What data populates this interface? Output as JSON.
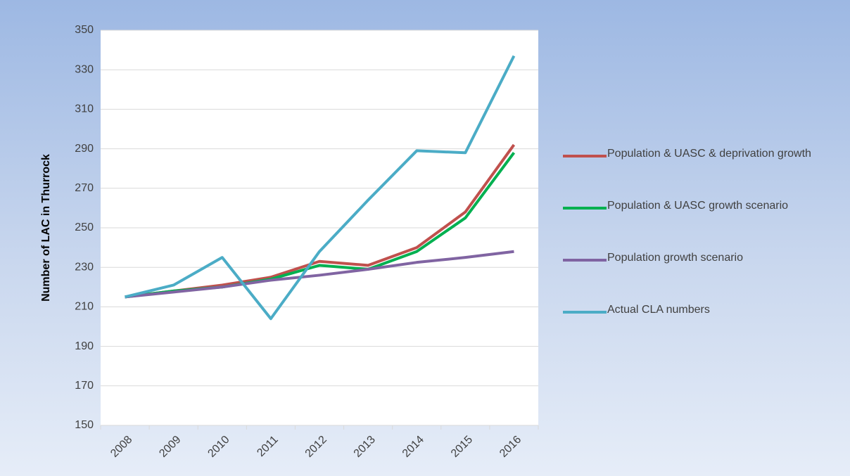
{
  "chart_data": {
    "type": "line",
    "y_label": "Number of LAC in Thurrock",
    "categories": [
      "2008",
      "2009",
      "2010",
      "2011",
      "2012",
      "2013",
      "2014",
      "2015",
      "2016"
    ],
    "series": [
      {
        "name": "Population & UASC & deprivation growth",
        "color": "#c0504d",
        "values": [
          215,
          218,
          221,
          225,
          233,
          231,
          240,
          258,
          292
        ]
      },
      {
        "name": "Population & UASC growth scenario",
        "color": "#00b050",
        "values": [
          215,
          218,
          220,
          224,
          231,
          229,
          238,
          255,
          288
        ]
      },
      {
        "name": "Population growth scenario",
        "color": "#8064a2",
        "values": [
          215,
          217.5,
          220,
          223.5,
          226,
          229,
          232.5,
          235,
          238
        ]
      },
      {
        "name": "Actual CLA numbers",
        "color": "#4bacc6",
        "values": [
          215,
          221,
          235,
          204,
          238,
          264,
          289,
          288,
          337
        ]
      }
    ],
    "ylim": [
      150,
      350
    ],
    "yticks": [
      150,
      170,
      190,
      210,
      230,
      250,
      270,
      290,
      310,
      330,
      350
    ],
    "grid": true,
    "legend": "right"
  }
}
